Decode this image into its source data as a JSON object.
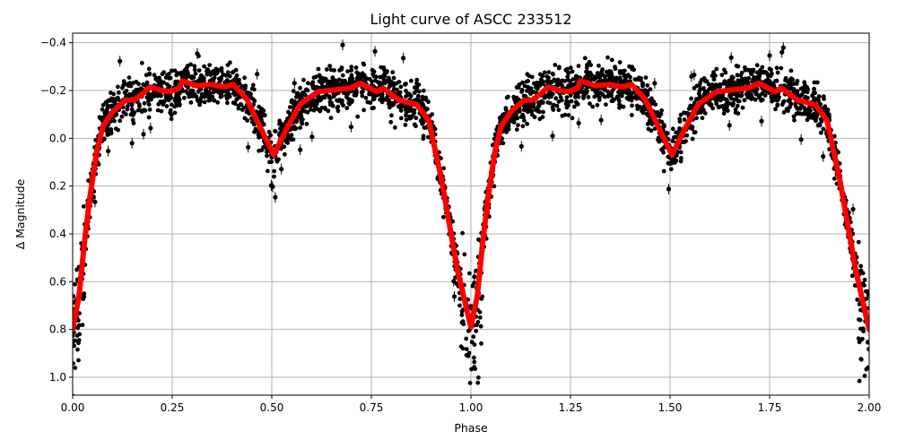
{
  "chart_data": {
    "type": "scatter",
    "title": "Light curve of ASCC 233512",
    "xlabel": "Phase",
    "ylabel": "Δ Magnitude",
    "xlim": [
      0.0,
      2.0
    ],
    "ylim": [
      1.075,
      -0.44
    ],
    "y_inverted": true,
    "grid": true,
    "legend": null,
    "x_ticks": [
      0.0,
      0.25,
      0.5,
      0.75,
      1.0,
      1.25,
      1.5,
      1.75,
      2.0
    ],
    "x_tick_labels": [
      "0.00",
      "0.25",
      "0.50",
      "0.75",
      "1.00",
      "1.25",
      "1.50",
      "1.75",
      "2.00"
    ],
    "y_ticks": [
      -0.4,
      -0.2,
      0.0,
      0.2,
      0.4,
      0.6,
      0.8,
      1.0
    ],
    "y_tick_labels": [
      "−0.4",
      "−0.2",
      "0.0",
      "0.2",
      "0.4",
      "0.6",
      "0.8",
      "1.0"
    ],
    "series": [
      {
        "name": "observations",
        "kind": "scatter with error bars",
        "color": "#000000",
        "description": "Dense cloud of black data points phase-folded over two cycles; scatter spans roughly ±0.1 mag around the model, extending to ~1.07 mag at primary eclipse (phase 0, 1, 2).",
        "envelope": {
          "x": [
            0.0,
            0.05,
            0.1,
            0.25,
            0.4,
            0.47,
            0.5,
            0.53,
            0.6,
            0.75,
            0.9,
            0.95,
            1.0
          ],
          "upper": [
            1.07,
            0.35,
            -0.02,
            -0.08,
            -0.08,
            0.05,
            0.18,
            0.05,
            -0.08,
            -0.05,
            0.02,
            0.35,
            1.07
          ],
          "lower": [
            0.6,
            0.1,
            -0.28,
            -0.32,
            -0.32,
            -0.18,
            -0.05,
            -0.2,
            -0.3,
            -0.35,
            -0.25,
            0.05,
            0.7
          ]
        }
      },
      {
        "name": "model fit",
        "kind": "line",
        "color": "#ff0000",
        "x": [
          0.0,
          0.016,
          0.03,
          0.043,
          0.06,
          0.076,
          0.1,
          0.133,
          0.155,
          0.178,
          0.194,
          0.223,
          0.245,
          0.268,
          0.275,
          0.313,
          0.347,
          0.38,
          0.403,
          0.437,
          0.47,
          0.505,
          0.534,
          0.572,
          0.617,
          0.696,
          0.723,
          0.764,
          0.779,
          0.82,
          0.865,
          0.894,
          0.926,
          0.966,
          1.0,
          1.016,
          1.03,
          1.043,
          1.06,
          1.076,
          1.1,
          1.133,
          1.155,
          1.178,
          1.194,
          1.223,
          1.245,
          1.268,
          1.275,
          1.313,
          1.347,
          1.38,
          1.403,
          1.437,
          1.47,
          1.505,
          1.534,
          1.572,
          1.617,
          1.696,
          1.723,
          1.764,
          1.779,
          1.82,
          1.865,
          1.894,
          1.926,
          1.966,
          2.0
        ],
        "y": [
          0.8,
          0.66,
          0.43,
          0.25,
          0.06,
          -0.05,
          -0.11,
          -0.16,
          -0.16,
          -0.19,
          -0.215,
          -0.2,
          -0.195,
          -0.21,
          -0.24,
          -0.22,
          -0.225,
          -0.215,
          -0.225,
          -0.165,
          -0.05,
          0.07,
          -0.03,
          -0.145,
          -0.195,
          -0.21,
          -0.23,
          -0.195,
          -0.21,
          -0.16,
          -0.14,
          -0.075,
          0.17,
          0.55,
          0.79,
          0.66,
          0.43,
          0.25,
          0.06,
          -0.05,
          -0.11,
          -0.16,
          -0.16,
          -0.19,
          -0.215,
          -0.2,
          -0.195,
          -0.21,
          -0.24,
          -0.22,
          -0.225,
          -0.215,
          -0.225,
          -0.165,
          -0.05,
          0.07,
          -0.03,
          -0.145,
          -0.195,
          -0.21,
          -0.23,
          -0.195,
          -0.21,
          -0.16,
          -0.14,
          -0.075,
          0.17,
          0.55,
          0.8
        ]
      }
    ]
  }
}
